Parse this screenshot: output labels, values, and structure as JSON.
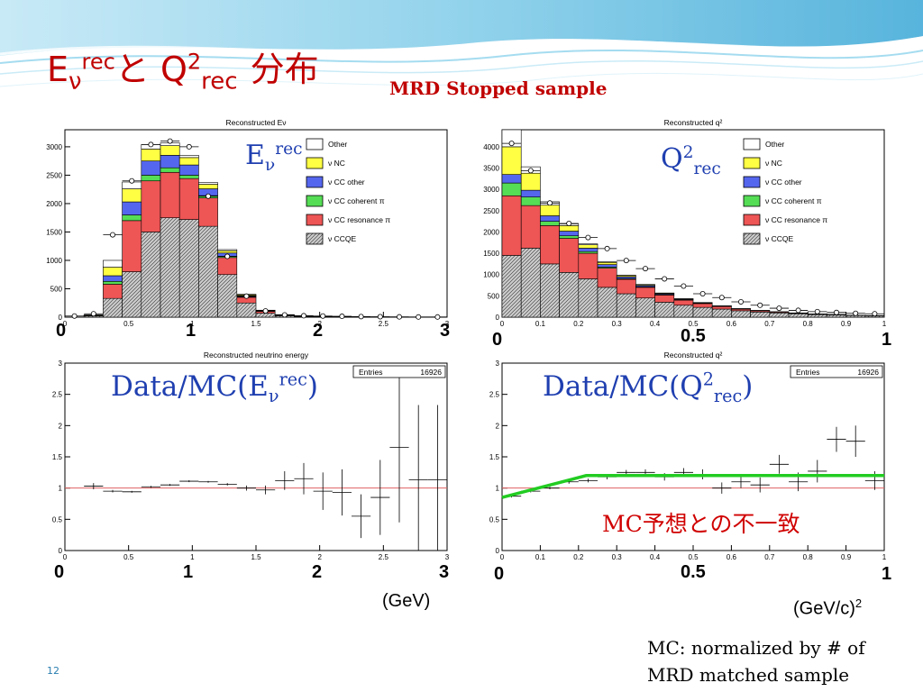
{
  "slide": {
    "title_main": "E",
    "title_nu": "ν",
    "title_rec_sup": "rec",
    "title_to": "と Q",
    "title_two": "2",
    "title_rec_sub": "rec",
    "title_ja": "分布",
    "subtitle": "MRD Stopped sample",
    "page_number": "12",
    "note_line1": "MC: normalized by # of",
    "note_line2": "MRD matched sample",
    "mc_disagree": "MC予想との不一致",
    "colors": {
      "title": "#c00000",
      "overlay": "#1f3fb0",
      "fit_line": "#22cc22",
      "ref_line": "#e06060"
    }
  },
  "overlays": {
    "ev_label": {
      "E": "E",
      "nu": "ν",
      "rec": "rec"
    },
    "q2_label": {
      "Q": "Q",
      "two": "2",
      "rec": "rec"
    },
    "ratio_ev": {
      "prefix": "Data/MC(E",
      "nu": "ν",
      "rec": "rec",
      "suffix": ")"
    },
    "ratio_q2": {
      "prefix": "Data/MC(Q",
      "two": "2",
      "rec": "rec",
      "suffix": ")"
    }
  },
  "axis_overlays": {
    "ev_top": [
      "0",
      "1",
      "2",
      "3"
    ],
    "q2_top": [
      "0",
      "0.5",
      "1"
    ],
    "ev_bottom": [
      "0",
      "1",
      "2",
      "3"
    ],
    "q2_bottom": [
      "0",
      "0.5",
      "1"
    ],
    "unit_gev": "(GeV)",
    "unit_gevc": "(GeV/c)",
    "unit_gevc_exp": "2"
  },
  "chart_data": [
    {
      "id": "ev_stack",
      "type": "bar",
      "title": "Reconstructed Eν",
      "xlabel": "",
      "ylabel": "",
      "xlim": [
        0,
        3
      ],
      "ylim": [
        0,
        3300
      ],
      "x_ticks": [
        "0",
        "0.5",
        "1",
        "1.5",
        "2",
        "2.5",
        "3"
      ],
      "y_ticks": [
        "0",
        "500",
        "1000",
        "1500",
        "2000",
        "2500",
        "3000"
      ],
      "bin_width": 0.15,
      "bin_edges_start": 0,
      "legend_position": "top-right",
      "legend": [
        "Other",
        "ν NC",
        "ν CC other",
        "ν CC coherent π",
        "ν CC resonance π",
        "ν CCQE"
      ],
      "series": [
        {
          "name": "ν CCQE",
          "color": "#bbbbbb",
          "values": [
            0,
            20,
            330,
            800,
            1500,
            1750,
            1720,
            1600,
            750,
            250,
            70,
            25,
            8,
            5,
            3,
            2,
            1,
            1,
            0,
            0
          ]
        },
        {
          "name": "ν CC resonance π",
          "color": "#ee5555",
          "values": [
            0,
            5,
            250,
            900,
            900,
            800,
            720,
            500,
            300,
            100,
            30,
            10,
            5,
            3,
            2,
            1,
            1,
            0,
            0,
            0
          ]
        },
        {
          "name": "ν CC coherent π",
          "color": "#55dd55",
          "values": [
            0,
            2,
            50,
            100,
            100,
            80,
            60,
            40,
            20,
            8,
            4,
            2,
            1,
            0,
            0,
            0,
            0,
            0,
            0,
            0
          ]
        },
        {
          "name": "ν CC other",
          "color": "#5566ee",
          "values": [
            0,
            3,
            100,
            230,
            250,
            220,
            180,
            120,
            60,
            20,
            8,
            3,
            1,
            1,
            0,
            0,
            0,
            0,
            0,
            0
          ]
        },
        {
          "name": "ν NC",
          "color": "#ffff44",
          "values": [
            0,
            5,
            150,
            230,
            210,
            170,
            130,
            80,
            40,
            15,
            6,
            2,
            1,
            1,
            0,
            0,
            0,
            0,
            0,
            0
          ]
        },
        {
          "name": "Other",
          "color": "#ffffff",
          "values": [
            0,
            5,
            120,
            120,
            80,
            50,
            40,
            30,
            20,
            10,
            5,
            3,
            2,
            1,
            1,
            0,
            0,
            0,
            0,
            0
          ]
        }
      ],
      "data_points": [
        20,
        60,
        1450,
        2400,
        3040,
        3100,
        3000,
        2130,
        1070,
        370,
        110,
        40,
        25,
        20,
        15,
        10,
        8,
        5,
        3,
        3
      ]
    },
    {
      "id": "q2_stack",
      "type": "bar",
      "title": "Reconstructed q²",
      "xlabel": "",
      "ylabel": "",
      "xlim": [
        0,
        1
      ],
      "ylim": [
        0,
        4400
      ],
      "x_ticks": [
        "0",
        "0.1",
        "0.2",
        "0.3",
        "0.4",
        "0.5",
        "0.6",
        "0.7",
        "0.8",
        "0.9",
        "1"
      ],
      "y_ticks": [
        "0",
        "500",
        "1000",
        "1500",
        "2000",
        "2500",
        "3000",
        "3500",
        "4000"
      ],
      "bin_width": 0.05,
      "bin_edges_start": 0,
      "legend_position": "top-right",
      "legend": [
        "Other",
        "ν NC",
        "ν CC other",
        "ν CC coherent π",
        "ν CC resonance π",
        "ν CCQE"
      ],
      "series": [
        {
          "name": "ν CCQE",
          "color": "#bbbbbb",
          "values": [
            1450,
            1620,
            1250,
            1050,
            900,
            700,
            550,
            450,
            350,
            280,
            230,
            190,
            150,
            120,
            100,
            80,
            60,
            50,
            40,
            30
          ]
        },
        {
          "name": "ν CC resonance π",
          "color": "#ee5555",
          "values": [
            1400,
            1000,
            900,
            800,
            600,
            450,
            340,
            250,
            170,
            120,
            90,
            60,
            40,
            30,
            20,
            15,
            10,
            8,
            5,
            5
          ]
        },
        {
          "name": "ν CC coherent π",
          "color": "#55dd55",
          "values": [
            300,
            200,
            100,
            60,
            40,
            25,
            15,
            10,
            8,
            5,
            3,
            2,
            1,
            1,
            1,
            0,
            0,
            0,
            0,
            0
          ]
        },
        {
          "name": "ν CC other",
          "color": "#5566ee",
          "values": [
            200,
            160,
            130,
            110,
            80,
            60,
            40,
            30,
            20,
            15,
            10,
            8,
            5,
            4,
            3,
            2,
            2,
            1,
            1,
            1
          ]
        },
        {
          "name": "ν NC",
          "color": "#ffff44",
          "values": [
            650,
            400,
            250,
            130,
            80,
            50,
            30,
            20,
            15,
            10,
            8,
            5,
            4,
            3,
            2,
            2,
            1,
            1,
            1,
            1
          ]
        },
        {
          "name": "Other",
          "color": "#ffffff",
          "values": [
            400,
            150,
            80,
            40,
            20,
            15,
            10,
            8,
            5,
            4,
            3,
            2,
            2,
            1,
            1,
            1,
            1,
            1,
            0,
            0
          ]
        }
      ],
      "data_points": [
        4080,
        3440,
        2680,
        2200,
        1870,
        1610,
        1330,
        1140,
        900,
        730,
        550,
        460,
        360,
        280,
        210,
        160,
        130,
        110,
        90,
        80
      ]
    },
    {
      "id": "ev_ratio",
      "type": "scatter",
      "title": "Reconstructed neutrino energy",
      "xlabel": "",
      "ylabel": "",
      "xlim": [
        0,
        3
      ],
      "ylim": [
        0,
        3
      ],
      "x_ticks": [
        "0",
        "0.5",
        "1",
        "1.5",
        "2",
        "2.5",
        "3"
      ],
      "y_ticks": [
        "0",
        "0.5",
        "1",
        "1.5",
        "2",
        "2.5",
        "3"
      ],
      "stats_box": {
        "label": "Entries",
        "value": "16926"
      },
      "reference_line": 1,
      "points": [
        {
          "x": 0.225,
          "y": 1.03,
          "ex": 0.075,
          "ey": 0.05
        },
        {
          "x": 0.375,
          "y": 0.95,
          "ex": 0.075,
          "ey": 0.02
        },
        {
          "x": 0.525,
          "y": 0.94,
          "ex": 0.075,
          "ey": 0.015
        },
        {
          "x": 0.675,
          "y": 1.02,
          "ex": 0.075,
          "ey": 0.015
        },
        {
          "x": 0.825,
          "y": 1.05,
          "ex": 0.075,
          "ey": 0.015
        },
        {
          "x": 0.975,
          "y": 1.11,
          "ex": 0.075,
          "ey": 0.015
        },
        {
          "x": 1.125,
          "y": 1.1,
          "ex": 0.075,
          "ey": 0.015
        },
        {
          "x": 1.275,
          "y": 1.06,
          "ex": 0.075,
          "ey": 0.02
        },
        {
          "x": 1.425,
          "y": 1.0,
          "ex": 0.075,
          "ey": 0.04
        },
        {
          "x": 1.575,
          "y": 0.97,
          "ex": 0.075,
          "ey": 0.07
        },
        {
          "x": 1.725,
          "y": 1.12,
          "ex": 0.075,
          "ey": 0.15
        },
        {
          "x": 1.875,
          "y": 1.15,
          "ex": 0.075,
          "ey": 0.25
        },
        {
          "x": 2.025,
          "y": 0.95,
          "ex": 0.075,
          "ey": 0.3
        },
        {
          "x": 2.175,
          "y": 0.93,
          "ex": 0.075,
          "ey": 0.37
        },
        {
          "x": 2.325,
          "y": 0.55,
          "ex": 0.075,
          "ey": 0.35
        },
        {
          "x": 2.475,
          "y": 0.85,
          "ex": 0.075,
          "ey": 0.6
        },
        {
          "x": 2.625,
          "y": 1.65,
          "ex": 0.075,
          "ey": 1.2
        },
        {
          "x": 2.775,
          "y": 1.13,
          "ex": 0.075,
          "ey": 1.2
        },
        {
          "x": 2.925,
          "y": 1.13,
          "ex": 0.075,
          "ey": 1.2
        }
      ]
    },
    {
      "id": "q2_ratio",
      "type": "scatter",
      "title": "Reconstructed q²",
      "xlabel": "",
      "ylabel": "",
      "xlim": [
        0,
        1
      ],
      "ylim": [
        0,
        3
      ],
      "x_ticks": [
        "0",
        "0.1",
        "0.2",
        "0.3",
        "0.4",
        "0.5",
        "0.6",
        "0.7",
        "0.8",
        "0.9",
        "1"
      ],
      "y_ticks": [
        "0",
        "0.5",
        "1",
        "1.5",
        "2",
        "2.5",
        "3"
      ],
      "stats_box": {
        "label": "Entries",
        "value": "16926"
      },
      "reference_line": 1,
      "points": [
        {
          "x": 0.025,
          "y": 0.87,
          "ex": 0.025,
          "ey": 0.02
        },
        {
          "x": 0.075,
          "y": 0.95,
          "ex": 0.025,
          "ey": 0.02
        },
        {
          "x": 0.125,
          "y": 1.0,
          "ex": 0.025,
          "ey": 0.02
        },
        {
          "x": 0.175,
          "y": 1.1,
          "ex": 0.025,
          "ey": 0.03
        },
        {
          "x": 0.225,
          "y": 1.12,
          "ex": 0.025,
          "ey": 0.03
        },
        {
          "x": 0.275,
          "y": 1.18,
          "ex": 0.025,
          "ey": 0.04
        },
        {
          "x": 0.325,
          "y": 1.25,
          "ex": 0.025,
          "ey": 0.04
        },
        {
          "x": 0.375,
          "y": 1.25,
          "ex": 0.025,
          "ey": 0.05
        },
        {
          "x": 0.425,
          "y": 1.18,
          "ex": 0.025,
          "ey": 0.06
        },
        {
          "x": 0.475,
          "y": 1.25,
          "ex": 0.025,
          "ey": 0.07
        },
        {
          "x": 0.525,
          "y": 1.22,
          "ex": 0.025,
          "ey": 0.08
        },
        {
          "x": 0.575,
          "y": 1.0,
          "ex": 0.025,
          "ey": 0.09
        },
        {
          "x": 0.625,
          "y": 1.1,
          "ex": 0.025,
          "ey": 0.1
        },
        {
          "x": 0.675,
          "y": 1.05,
          "ex": 0.025,
          "ey": 0.12
        },
        {
          "x": 0.725,
          "y": 1.38,
          "ex": 0.025,
          "ey": 0.15
        },
        {
          "x": 0.775,
          "y": 1.1,
          "ex": 0.025,
          "ey": 0.15
        },
        {
          "x": 0.825,
          "y": 1.27,
          "ex": 0.025,
          "ey": 0.18
        },
        {
          "x": 0.875,
          "y": 1.78,
          "ex": 0.025,
          "ey": 0.2
        },
        {
          "x": 0.925,
          "y": 1.75,
          "ex": 0.025,
          "ey": 0.25
        },
        {
          "x": 0.975,
          "y": 1.12,
          "ex": 0.025,
          "ey": 0.15
        }
      ],
      "fit_line": {
        "color": "#22cc22",
        "points": [
          [
            0.0,
            0.85
          ],
          [
            0.22,
            1.2
          ],
          [
            1.0,
            1.2
          ]
        ]
      }
    }
  ]
}
